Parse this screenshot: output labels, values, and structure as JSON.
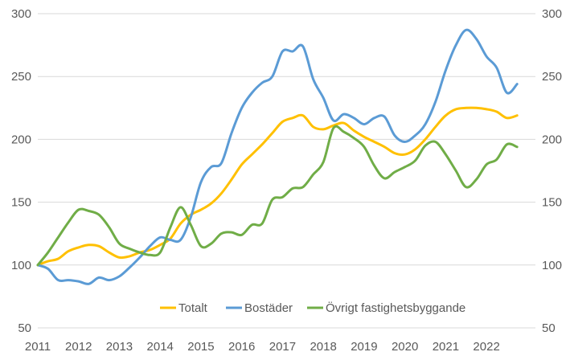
{
  "chart_data": {
    "type": "line",
    "title": "",
    "xlabel": "",
    "ylabel": "",
    "ylim": [
      50,
      300
    ],
    "y_ticks": [
      50,
      100,
      150,
      200,
      250,
      300
    ],
    "y_ticks_right": [
      50,
      100,
      150,
      200,
      250,
      300
    ],
    "x_range": [
      2011,
      2023.2
    ],
    "x_ticks": [
      2011,
      2012,
      2013,
      2014,
      2015,
      2016,
      2017,
      2018,
      2019,
      2020,
      2021,
      2022
    ],
    "grid": "horizontal",
    "legend_position": "bottom-center",
    "series": [
      {
        "name": "Totalt",
        "color": "#FFC000",
        "x": [
          2011.0,
          2011.25,
          2011.5,
          2011.75,
          2012.0,
          2012.25,
          2012.5,
          2012.75,
          2013.0,
          2013.25,
          2013.5,
          2013.75,
          2014.0,
          2014.25,
          2014.5,
          2014.75,
          2015.0,
          2015.25,
          2015.5,
          2015.75,
          2016.0,
          2016.25,
          2016.5,
          2016.75,
          2017.0,
          2017.25,
          2017.5,
          2017.75,
          2018.0,
          2018.25,
          2018.5,
          2018.75,
          2019.0,
          2019.25,
          2019.5,
          2019.75,
          2020.0,
          2020.25,
          2020.5,
          2020.75,
          2021.0,
          2021.25,
          2021.5,
          2021.75,
          2022.0,
          2022.25,
          2022.5,
          2022.75
        ],
        "values": [
          100,
          103,
          105,
          111,
          114,
          116,
          115,
          110,
          106,
          107,
          110,
          112,
          116,
          121,
          133,
          140,
          144,
          149,
          157,
          168,
          180,
          188,
          196,
          205,
          214,
          217,
          219,
          210,
          208,
          211,
          213,
          207,
          202,
          198,
          194,
          189,
          188,
          192,
          200,
          210,
          219,
          224,
          225,
          225,
          224,
          222,
          217,
          219
        ]
      },
      {
        "name": "Bostäder",
        "color": "#5B9BD5",
        "x": [
          2011.0,
          2011.25,
          2011.5,
          2011.75,
          2012.0,
          2012.25,
          2012.5,
          2012.75,
          2013.0,
          2013.25,
          2013.5,
          2013.75,
          2014.0,
          2014.25,
          2014.5,
          2014.75,
          2015.0,
          2015.25,
          2015.5,
          2015.75,
          2016.0,
          2016.25,
          2016.5,
          2016.75,
          2017.0,
          2017.25,
          2017.5,
          2017.75,
          2018.0,
          2018.25,
          2018.5,
          2018.75,
          2019.0,
          2019.25,
          2019.5,
          2019.75,
          2020.0,
          2020.25,
          2020.5,
          2020.75,
          2021.0,
          2021.25,
          2021.5,
          2021.75,
          2022.0,
          2022.25,
          2022.5,
          2022.75
        ],
        "values": [
          100,
          97,
          88,
          88,
          87,
          85,
          90,
          88,
          91,
          98,
          106,
          115,
          122,
          120,
          120,
          138,
          166,
          178,
          181,
          205,
          225,
          237,
          245,
          250,
          270,
          270,
          274,
          248,
          233,
          215,
          220,
          217,
          212,
          217,
          218,
          203,
          198,
          203,
          212,
          230,
          255,
          275,
          287,
          280,
          266,
          257,
          237,
          244
        ]
      },
      {
        "name": "Övrigt fastighetsbyggande",
        "color": "#70AD47",
        "x": [
          2011.0,
          2011.25,
          2011.5,
          2011.75,
          2012.0,
          2012.25,
          2012.5,
          2012.75,
          2013.0,
          2013.25,
          2013.5,
          2013.75,
          2014.0,
          2014.25,
          2014.5,
          2014.75,
          2015.0,
          2015.25,
          2015.5,
          2015.75,
          2016.0,
          2016.25,
          2016.5,
          2016.75,
          2017.0,
          2017.25,
          2017.5,
          2017.75,
          2018.0,
          2018.25,
          2018.5,
          2018.75,
          2019.0,
          2019.25,
          2019.5,
          2019.75,
          2020.0,
          2020.25,
          2020.5,
          2020.75,
          2021.0,
          2021.25,
          2021.5,
          2021.75,
          2022.0,
          2022.25,
          2022.5,
          2022.75
        ],
        "values": [
          100,
          110,
          122,
          134,
          144,
          143,
          140,
          130,
          117,
          113,
          110,
          108,
          110,
          130,
          146,
          132,
          115,
          117,
          125,
          126,
          124,
          132,
          133,
          152,
          154,
          161,
          162,
          172,
          182,
          209,
          206,
          201,
          194,
          179,
          169,
          174,
          178,
          183,
          195,
          198,
          188,
          175,
          162,
          168,
          180,
          184,
          196,
          194
        ]
      }
    ]
  }
}
